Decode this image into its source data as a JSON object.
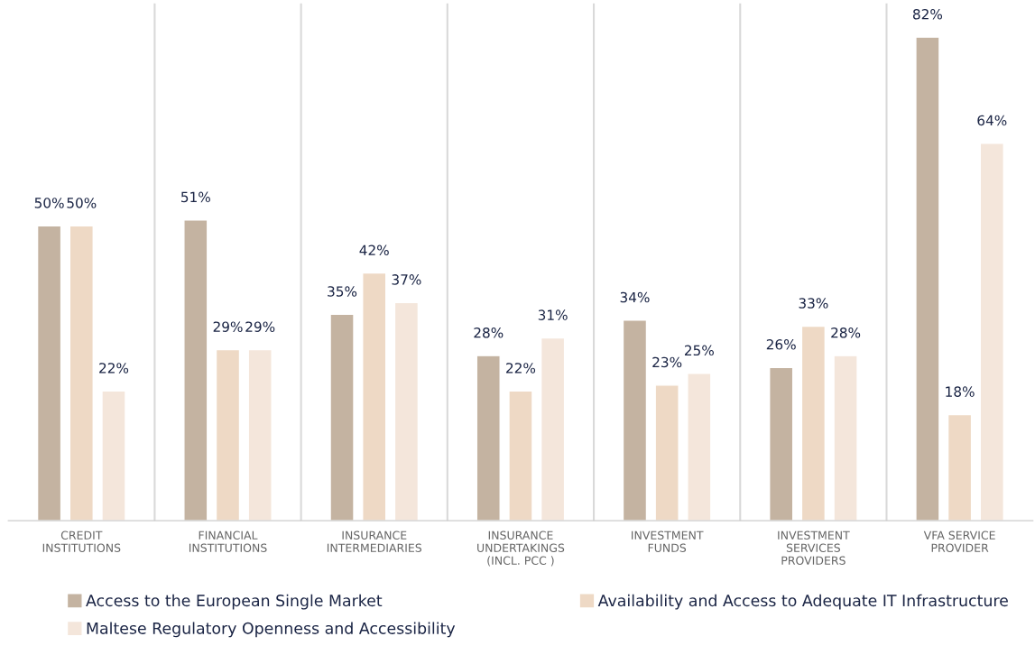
{
  "chart_data": {
    "type": "bar",
    "categories": [
      "CREDIT\nINSTITUTIONS",
      "FINANCIAL\nINSTITUTIONS",
      "INSURANCE\nINTERMEDIARIES",
      "INSURANCE\nUNDERTAKINGS\n(INCL. PCC )",
      "INVESTMENT\nFUNDS",
      "INVESTMENT\nSERVICES\nPROVIDERS",
      "VFA SERVICE\nPROVIDER"
    ],
    "series": [
      {
        "name": "Access to the European Single Market",
        "color": "#c4b3a1",
        "values": [
          50,
          51,
          35,
          28,
          34,
          26,
          82
        ],
        "value_labels": [
          "50%",
          "51%",
          "35%",
          "28%",
          "34%",
          "26%",
          "82%"
        ]
      },
      {
        "name": "Availability and Access to Adequate IT Infrastructure",
        "color": "#eed9c5",
        "values": [
          50,
          29,
          42,
          22,
          23,
          33,
          18
        ],
        "value_labels": [
          "50%",
          "29%",
          "42%",
          "22%",
          "23%",
          "33%",
          "18%"
        ]
      },
      {
        "name": "Maltese Regulatory Openness and Accessibility",
        "color": "#f4e6db",
        "values": [
          22,
          29,
          37,
          31,
          25,
          28,
          64
        ],
        "value_labels": [
          "22%",
          "29%",
          "37%",
          "31%",
          "25%",
          "28%",
          "64%"
        ]
      }
    ],
    "legend": "bottom",
    "grid": false
  }
}
